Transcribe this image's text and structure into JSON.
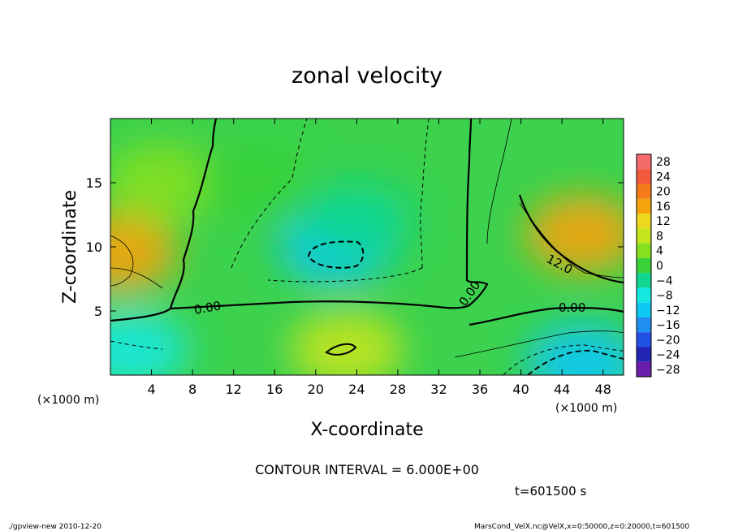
{
  "chart_data": {
    "type": "heatmap",
    "title": "zonal velocity",
    "xlabel": "X-coordinate",
    "ylabel": "Z-coordinate",
    "x_unit": "(×1000 m)",
    "y_unit": "(×1000 m)",
    "xlim": [
      0,
      50
    ],
    "ylim": [
      0,
      20
    ],
    "x_ticks": [
      4,
      8,
      12,
      16,
      20,
      24,
      28,
      32,
      36,
      40,
      44,
      48
    ],
    "y_ticks": [
      5,
      10,
      15
    ],
    "colorbar": {
      "levels": [
        28,
        24,
        20,
        16,
        12,
        8,
        4,
        0,
        -4,
        -8,
        -12,
        -16,
        -20,
        -24,
        -28
      ],
      "colors": [
        "#f56a6a",
        "#f25a3c",
        "#f47a1a",
        "#f6a40e",
        "#ecd81e",
        "#c4e41e",
        "#86e01e",
        "#38d238",
        "#10d690",
        "#14e8e0",
        "#10c8f4",
        "#1e8ef0",
        "#2050e4",
        "#2424b4",
        "#6a1eaa"
      ]
    },
    "contour_labels": [
      "0.00",
      "0.00",
      "12.0",
      "0.00"
    ],
    "contour_interval_text": "CONTOUR INTERVAL = 6.000E+00",
    "time_text": "t=601500 s",
    "footer_left": "./gpview-new   2010-12-20",
    "footer_right": "MarsCond_VelX.nc@VelX,x=0:50000,z=0:20000,t=601500",
    "field_features": [
      {
        "x": 22,
        "z": 10,
        "value": -12
      },
      {
        "x": 24,
        "z": 12,
        "value": -6
      },
      {
        "x": 46,
        "z": 11,
        "value": 16
      },
      {
        "x": 1,
        "z": 9.5,
        "value": 14
      },
      {
        "x": 23,
        "z": 2,
        "value": 8
      },
      {
        "x": 46,
        "z": 1,
        "value": -12
      },
      {
        "x": 2,
        "z": 2,
        "value": -8
      },
      {
        "x": 5,
        "z": 15,
        "value": 4
      },
      {
        "x": 14,
        "z": 15,
        "value": 0
      }
    ]
  }
}
